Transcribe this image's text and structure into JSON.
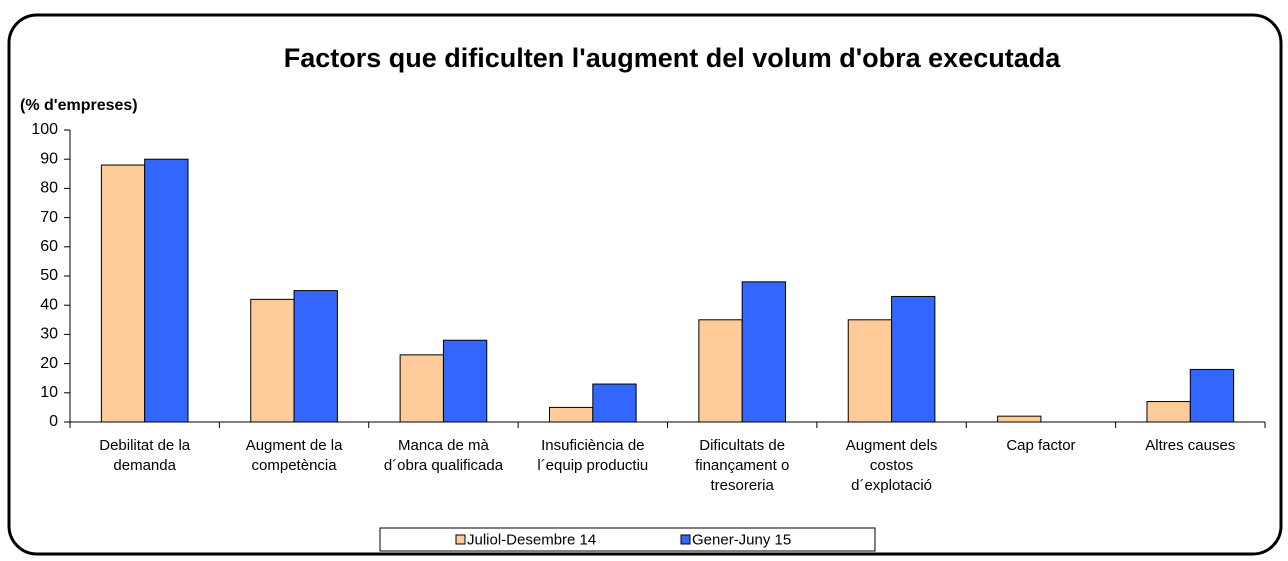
{
  "chart_data": {
    "type": "bar",
    "title": "Factors que dificulten l'augment del volum d'obra executada",
    "y_label": "(% d'empreses)",
    "categories": [
      "Debilitat de la\ndemanda",
      "Augment de la\ncompetència",
      "Manca de mà\nd´obra qualificada",
      "Insuficiència de\nl´equip productiu",
      "Dificultats de\nfinançament o\ntresoreria",
      "Augment dels\ncostos\nd´explotació",
      "Cap factor",
      "Altres causes"
    ],
    "series": [
      {
        "name": "Juliol-Desembre 14",
        "color": "#FFCC99",
        "values": [
          88,
          42,
          23,
          5,
          35,
          35,
          2,
          7
        ]
      },
      {
        "name": "Gener-Juny 15",
        "color": "#3366FF",
        "values": [
          90,
          45,
          28,
          13,
          48,
          43,
          0,
          18
        ]
      }
    ],
    "ylim": [
      0,
      100
    ],
    "yticks": [
      0,
      10,
      20,
      30,
      40,
      50,
      60,
      70,
      80,
      90,
      100
    ],
    "grid": false,
    "legend": "bottom"
  }
}
